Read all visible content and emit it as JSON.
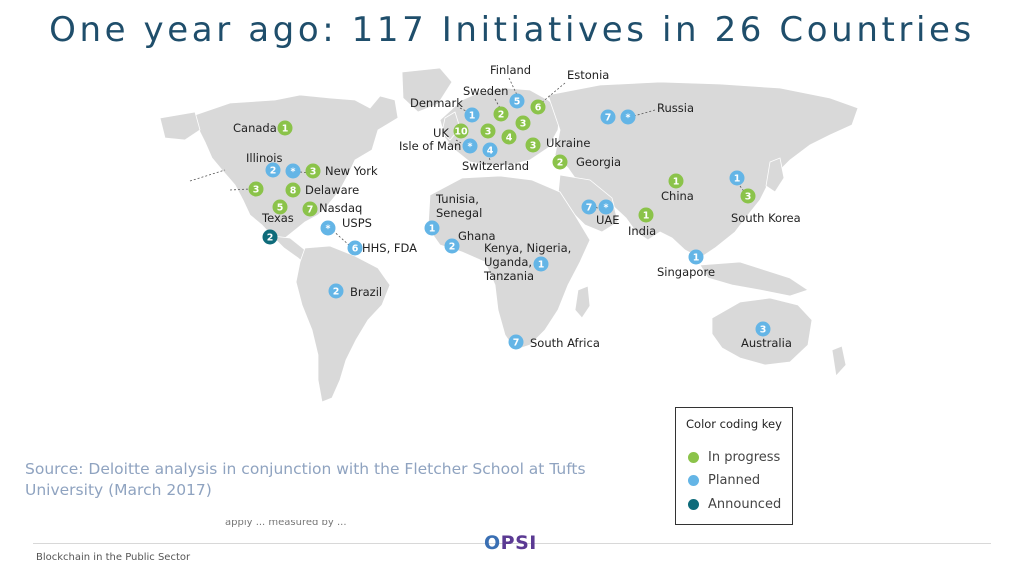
{
  "title": "One year ago: 117 Initiatives in 26 Countries",
  "source": "Source: Deloitte analysis in conjunction with the Fletcher School at Tufts University (March 2017)",
  "footer": "Blockchain in the Public Sector",
  "logo": {
    "prefix": "O",
    "rest": "PSI"
  },
  "cutoff_text": "apply ... measured by ... ",
  "colors": {
    "in_progress": "#8bc34a",
    "planned": "#64b5e6",
    "announced": "#0e6b7a"
  },
  "legend": {
    "title": "Color coding key",
    "items": [
      {
        "label": "In progress",
        "status": "in_progress"
      },
      {
        "label": "Planned",
        "status": "planned"
      },
      {
        "label": "Announced",
        "status": "announced"
      }
    ]
  },
  "markers": [
    {
      "label": "Canada",
      "value": "1",
      "status": "in_progress"
    },
    {
      "label": "Illinois",
      "value": "2",
      "status": "planned"
    },
    {
      "label": "Illinois",
      "value": "*",
      "status": "planned"
    },
    {
      "label": "New York",
      "value": "3",
      "status": "in_progress"
    },
    {
      "label": "",
      "value": "3",
      "status": "in_progress"
    },
    {
      "label": "Delaware",
      "value": "8",
      "status": "in_progress"
    },
    {
      "label": "Texas",
      "value": "5",
      "status": "in_progress"
    },
    {
      "label": "Nasdaq",
      "value": "7",
      "status": "in_progress"
    },
    {
      "label": "USPS",
      "value": "*",
      "status": "planned"
    },
    {
      "label": "",
      "value": "2",
      "status": "announced"
    },
    {
      "label": "HHS, FDA",
      "value": "6",
      "status": "planned"
    },
    {
      "label": "Brazil",
      "value": "2",
      "status": "planned"
    },
    {
      "label": "Finland",
      "value": "5",
      "status": "planned"
    },
    {
      "label": "Estonia",
      "value": "6",
      "status": "in_progress"
    },
    {
      "label": "Sweden",
      "value": "2",
      "status": "in_progress"
    },
    {
      "label": "Denmark",
      "value": "1",
      "status": "planned"
    },
    {
      "label": "",
      "value": "3",
      "status": "in_progress"
    },
    {
      "label": "UK",
      "value": "10",
      "status": "in_progress"
    },
    {
      "label": "",
      "value": "3",
      "status": "in_progress"
    },
    {
      "label": "",
      "value": "4",
      "status": "in_progress"
    },
    {
      "label": "Isle of Man",
      "value": "*",
      "status": "planned"
    },
    {
      "label": "Switzerland",
      "value": "4",
      "status": "planned"
    },
    {
      "label": "Ukraine",
      "value": "3",
      "status": "in_progress"
    },
    {
      "label": "Georgia",
      "value": "2",
      "status": "in_progress"
    },
    {
      "label": "Russia",
      "value": "7",
      "status": "planned"
    },
    {
      "label": "Russia",
      "value": "*",
      "status": "planned"
    },
    {
      "label": "Tunisia, Senegal",
      "value": "1",
      "status": "planned"
    },
    {
      "label": "Ghana",
      "value": "2",
      "status": "planned"
    },
    {
      "label": "Kenya, Nigeria, Uganda, Tanzania",
      "value": "1",
      "status": "planned"
    },
    {
      "label": "UAE",
      "value": "7",
      "status": "planned"
    },
    {
      "label": "UAE",
      "value": "*",
      "status": "planned"
    },
    {
      "label": "India",
      "value": "1",
      "status": "in_progress"
    },
    {
      "label": "China",
      "value": "1",
      "status": "in_progress"
    },
    {
      "label": "",
      "value": "1",
      "status": "planned"
    },
    {
      "label": "South Korea",
      "value": "3",
      "status": "in_progress"
    },
    {
      "label": "Singapore",
      "value": "1",
      "status": "planned"
    },
    {
      "label": "South Africa",
      "value": "7",
      "status": "planned"
    },
    {
      "label": "Australia",
      "value": "3",
      "status": "planned"
    }
  ],
  "place_labels": {
    "canada": "Canada",
    "illinois": "Illinois",
    "new_york": "New York",
    "delaware": "Delaware",
    "nasdaq": "Nasdaq",
    "texas": "Texas",
    "usps": "USPS",
    "hhs": "HHS, FDA",
    "brazil": "Brazil",
    "finland": "Finland",
    "estonia": "Estonia",
    "sweden": "Sweden",
    "denmark": "Denmark",
    "uk": "UK",
    "isle_of_man": "Isle of Man",
    "switzerland": "Switzerland",
    "ukraine": "Ukraine",
    "georgia": "Georgia",
    "russia": "Russia",
    "tunisia_1": "Tunisia,",
    "tunisia_2": "Senegal",
    "ghana": "Ghana",
    "kenya_1": "Kenya, Nigeria,",
    "kenya_2": "Uganda,",
    "kenya_3": "Tanzania",
    "uae": "UAE",
    "india": "India",
    "china": "China",
    "south_korea": "South Korea",
    "singapore": "Singapore",
    "south_africa": "South Africa",
    "australia": "Australia"
  }
}
